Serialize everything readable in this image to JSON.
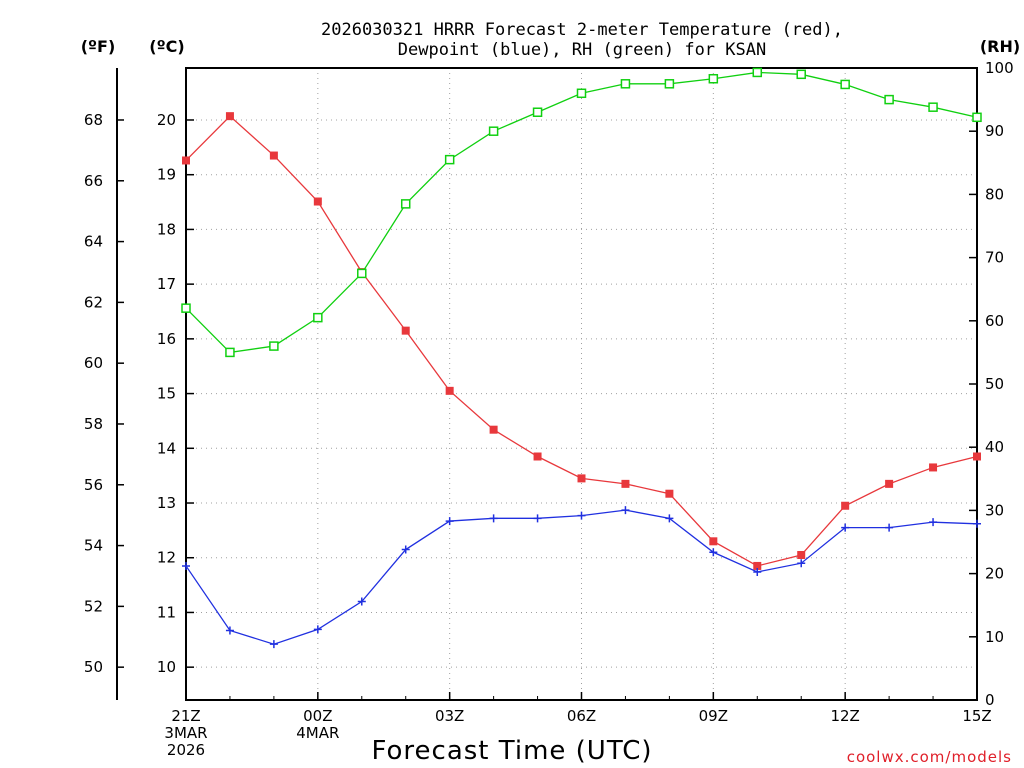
{
  "chart_data": {
    "type": "line",
    "title_line1": "2026030321 HRRR Forecast 2-meter Temperature (red),",
    "title_line2": "Dewpoint (blue), RH (green) for KSAN",
    "xlabel": "Forecast Time (UTC)",
    "credit": "coolwx.com/models",
    "left_axis_unit": "(ºF)",
    "mid_axis_unit": "(ºC)",
    "right_axis_unit": "(RH)",
    "x_hours": [
      0,
      1,
      2,
      3,
      4,
      5,
      6,
      7,
      8,
      9,
      10,
      11,
      12,
      13,
      14,
      15,
      16,
      17,
      18
    ],
    "xlim": [
      0,
      18
    ],
    "xticks": [
      {
        "hour": 0,
        "lines": [
          "21Z",
          "3MAR",
          "2026"
        ]
      },
      {
        "hour": 3,
        "lines": [
          "00Z",
          "4MAR"
        ]
      },
      {
        "hour": 6,
        "lines": [
          "03Z"
        ]
      },
      {
        "hour": 9,
        "lines": [
          "06Z"
        ]
      },
      {
        "hour": 12,
        "lines": [
          "09Z"
        ]
      },
      {
        "hour": 15,
        "lines": [
          "12Z"
        ]
      },
      {
        "hour": 18,
        "lines": [
          "15Z"
        ]
      }
    ],
    "celsius_range": [
      9.4,
      20.95
    ],
    "celsius_ticks": [
      "10",
      "11",
      "12",
      "13",
      "14",
      "15",
      "16",
      "17",
      "18",
      "19",
      "20"
    ],
    "fahrenheit_ticks": [
      "50",
      "52",
      "54",
      "56",
      "58",
      "60",
      "62",
      "64",
      "66",
      "68"
    ],
    "rh_range": [
      0,
      100
    ],
    "rh_ticks": [
      "0",
      "10",
      "20",
      "30",
      "40",
      "50",
      "60",
      "70",
      "80",
      "90",
      "100"
    ],
    "series": [
      {
        "name": "Temperature",
        "unit": "C",
        "color": "#e8383c",
        "marker": "filled-square",
        "values": [
          19.26,
          20.07,
          19.35,
          18.51,
          17.22,
          16.15,
          15.05,
          14.34,
          13.85,
          13.45,
          13.35,
          13.17,
          12.3,
          11.85,
          12.05,
          12.95,
          13.35,
          13.65,
          13.85
        ]
      },
      {
        "name": "Dewpoint",
        "unit": "C",
        "color": "#2030e0",
        "marker": "plus",
        "values": [
          11.85,
          10.67,
          10.42,
          10.69,
          11.2,
          12.15,
          12.67,
          12.72,
          12.72,
          12.77,
          12.87,
          12.72,
          12.1,
          11.74,
          11.9,
          12.55,
          12.55,
          12.65,
          12.62
        ]
      },
      {
        "name": "RH",
        "unit": "%",
        "color": "#10d010",
        "marker": "open-square",
        "values": [
          62,
          55,
          56,
          60.5,
          67.5,
          78.5,
          85.5,
          90,
          93,
          96,
          97.5,
          97.5,
          98.3,
          99.3,
          99,
          97.4,
          95,
          93.8,
          92.2
        ]
      }
    ],
    "grid": "dotted"
  }
}
